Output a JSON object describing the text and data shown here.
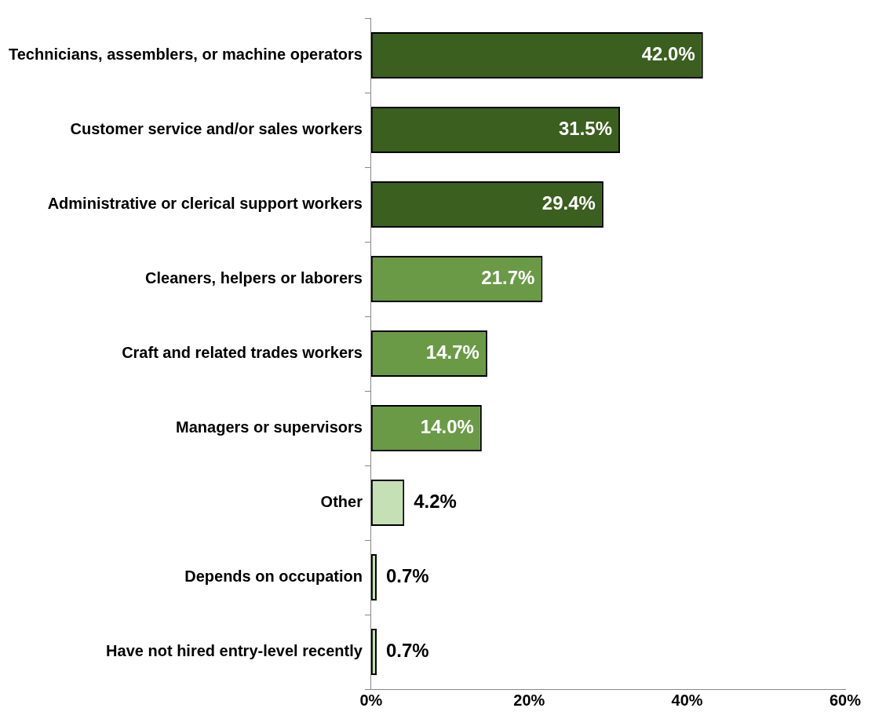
{
  "chart_data": {
    "type": "bar",
    "orientation": "horizontal",
    "categories": [
      "Technicians, assemblers, or machine operators",
      "Customer service and/or sales workers",
      "Administrative or clerical support workers",
      "Cleaners, helpers or laborers",
      "Craft and related trades workers",
      "Managers or supervisors",
      "Other",
      "Depends on occupation",
      "Have not hired entry-level recently"
    ],
    "values": [
      42.0,
      31.5,
      29.4,
      21.7,
      14.7,
      14.0,
      4.2,
      0.7,
      0.7
    ],
    "value_labels": [
      "42.0%",
      "31.5%",
      "29.4%",
      "21.7%",
      "14.7%",
      "14.0%",
      "4.2%",
      "0.7%",
      "0.7%"
    ],
    "colors": [
      "#3a5f1e",
      "#3a5f1e",
      "#3a5f1e",
      "#6a9a46",
      "#6a9a46",
      "#6a9a46",
      "#c5e0b4",
      "#c5e0b4",
      "#c5e0b4"
    ],
    "xlim": [
      0,
      60
    ],
    "xticks": [
      {
        "value": 0,
        "label": "0%"
      },
      {
        "value": 20,
        "label": "20%"
      },
      {
        "value": 40,
        "label": "40%"
      },
      {
        "value": 60,
        "label": "60%"
      }
    ],
    "grid": false,
    "legend": false
  }
}
